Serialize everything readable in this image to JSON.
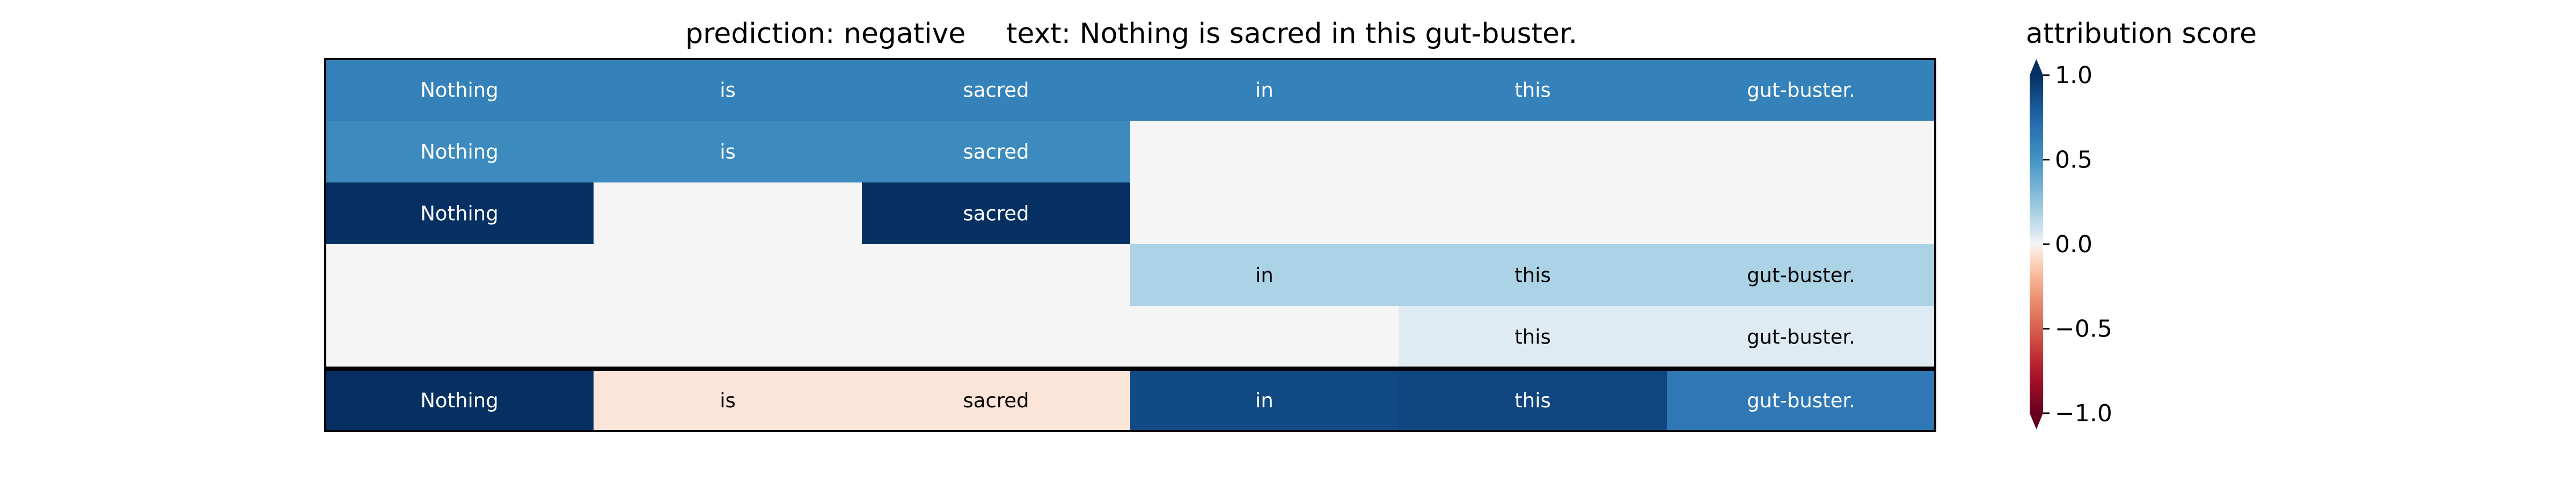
{
  "chart_data": {
    "type": "heatmap",
    "title_prediction": "prediction:  negative",
    "title_text": "text:  Nothing is sacred in this gut-buster.",
    "tokens": [
      "Nothing",
      "is",
      "sacred",
      "in",
      "this",
      "gut-buster."
    ],
    "rows": [
      {
        "mask": [
          1,
          1,
          1,
          1,
          1,
          1
        ],
        "values": [
          0.6,
          0.6,
          0.6,
          0.6,
          0.6,
          0.6
        ]
      },
      {
        "mask": [
          1,
          1,
          1,
          0,
          0,
          0
        ],
        "values": [
          0.55,
          0.55,
          0.55,
          0.0,
          0.0,
          0.0
        ]
      },
      {
        "mask": [
          1,
          0,
          1,
          0,
          0,
          0
        ],
        "values": [
          1.0,
          0.0,
          1.0,
          0.0,
          0.0,
          0.0
        ]
      },
      {
        "mask": [
          0,
          0,
          0,
          1,
          1,
          1
        ],
        "values": [
          0.0,
          0.0,
          0.0,
          0.18,
          0.18,
          0.18
        ]
      },
      {
        "mask": [
          0,
          0,
          0,
          0,
          1,
          1
        ],
        "values": [
          0.0,
          0.0,
          0.0,
          0.0,
          0.05,
          0.05
        ]
      },
      {
        "mask": [
          1,
          1,
          1,
          1,
          1,
          1
        ],
        "values": [
          1.0,
          -0.05,
          -0.05,
          0.88,
          0.9,
          0.65
        ]
      }
    ],
    "colorbar": {
      "label": "attribution score",
      "range": [
        -1.0,
        1.0
      ],
      "ticks": [
        1.0,
        0.5,
        0.0,
        -0.5,
        -1.0
      ],
      "tick_labels": [
        "1.0",
        "0.5",
        "0.0",
        "−0.5",
        "−1.0"
      ],
      "colormap": "RdBu"
    }
  }
}
